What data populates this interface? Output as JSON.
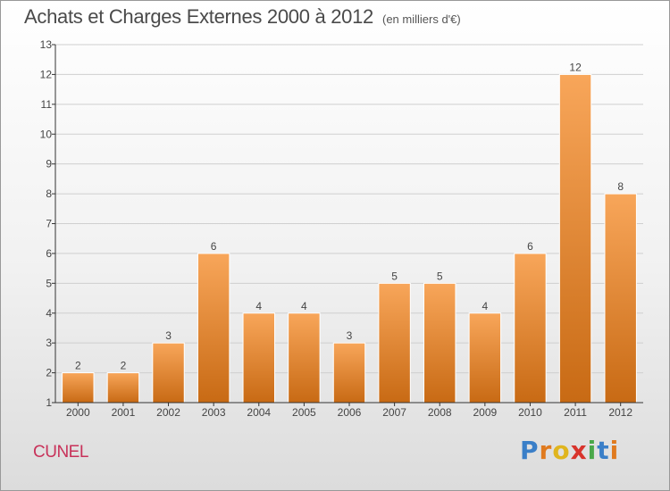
{
  "header": {
    "title": "Achats et Charges Externes 2000 à 2012",
    "unit": "(en milliers d'€)"
  },
  "footer": {
    "commune": "CUNEL",
    "logo_letters": [
      {
        "ch": "P",
        "color": "#3a7fc8"
      },
      {
        "ch": "r",
        "color": "#e07a1e"
      },
      {
        "ch": "o",
        "color": "#e0b51e"
      },
      {
        "ch": "x",
        "color": "#d8342c"
      },
      {
        "ch": "i",
        "color": "#4aa84a"
      },
      {
        "ch": "t",
        "color": "#3a7fc8"
      },
      {
        "ch": "i",
        "color": "#e07a1e"
      }
    ]
  },
  "colors": {
    "bar_top": "#f8a65a",
    "bar_bottom": "#c86a14",
    "bar_stroke": "#ffffff",
    "axis": "#333333",
    "grid": "#cfcfcf"
  },
  "chart_data": {
    "type": "bar",
    "categories": [
      "2000",
      "2001",
      "2002",
      "2003",
      "2004",
      "2005",
      "2006",
      "2007",
      "2008",
      "2009",
      "2010",
      "2011",
      "2012"
    ],
    "values": [
      2,
      2,
      3,
      6,
      4,
      4,
      3,
      5,
      5,
      4,
      6,
      12,
      8
    ],
    "title": "Achats et Charges Externes 2000 à 2012",
    "ylabel": "",
    "xlabel": "",
    "ylim": [
      1,
      13
    ],
    "yticks": [
      1,
      2,
      3,
      4,
      5,
      6,
      7,
      8,
      9,
      10,
      11,
      12,
      13
    ],
    "grid": true,
    "data_labels": true
  }
}
